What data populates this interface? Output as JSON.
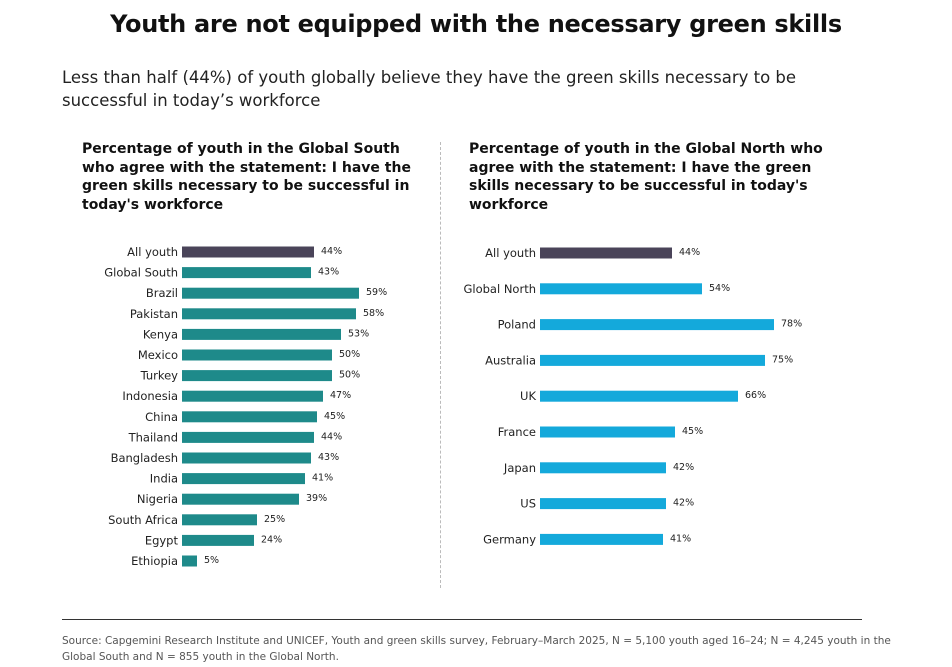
{
  "title": "Youth are not equipped with the necessary green skills",
  "subtitle": "Less than half (44%) of youth globally believe they have the green skills necessary to be successful in today’s workforce",
  "source": "Source: Capgemini Research Institute and UNICEF, Youth and green skills survey, February–March 2025, N = 5,100 youth aged 16–24; N = 4,245 youth in the Global South and N = 855 youth in the Global North.",
  "colors": {
    "all_youth": "#4a4459",
    "global_south": "#1e8a8a",
    "global_north": "#14a9db"
  },
  "chart_data": [
    {
      "type": "bar",
      "orientation": "horizontal",
      "title": "Percentage of youth in the Global South who agree with the statement: I have the green skills necessary to be successful in today's workforce",
      "categories": [
        "All youth",
        "Global South",
        "Brazil",
        "Pakistan",
        "Kenya",
        "Mexico",
        "Turkey",
        "Indonesia",
        "China",
        "Thailand",
        "Bangladesh",
        "India",
        "Nigeria",
        "South Africa",
        "Egypt",
        "Ethiopia"
      ],
      "values": [
        44,
        43,
        59,
        58,
        53,
        50,
        50,
        47,
        45,
        44,
        43,
        41,
        39,
        25,
        24,
        5
      ],
      "value_labels": [
        "44%",
        "43%",
        "59%",
        "58%",
        "53%",
        "50%",
        "50%",
        "47%",
        "45%",
        "44%",
        "43%",
        "41%",
        "39%",
        "25%",
        "24%",
        "5%"
      ],
      "highlight": "All youth",
      "xlim": [
        0,
        100
      ],
      "grid": false,
      "legend": "none"
    },
    {
      "type": "bar",
      "orientation": "horizontal",
      "title": "Percentage of youth in the Global North who agree with the statement: I have the green skills necessary to be successful in today's workforce",
      "categories": [
        "All youth",
        "Global North",
        "Poland",
        "Australia",
        "UK",
        "France",
        "Japan",
        "US",
        "Germany"
      ],
      "values": [
        44,
        54,
        78,
        75,
        66,
        45,
        42,
        42,
        41
      ],
      "value_labels": [
        "44%",
        "54%",
        "78%",
        "75%",
        "66%",
        "45%",
        "42%",
        "42%",
        "41%"
      ],
      "highlight": "All youth",
      "xlim": [
        0,
        100
      ],
      "grid": false,
      "legend": "none"
    }
  ]
}
